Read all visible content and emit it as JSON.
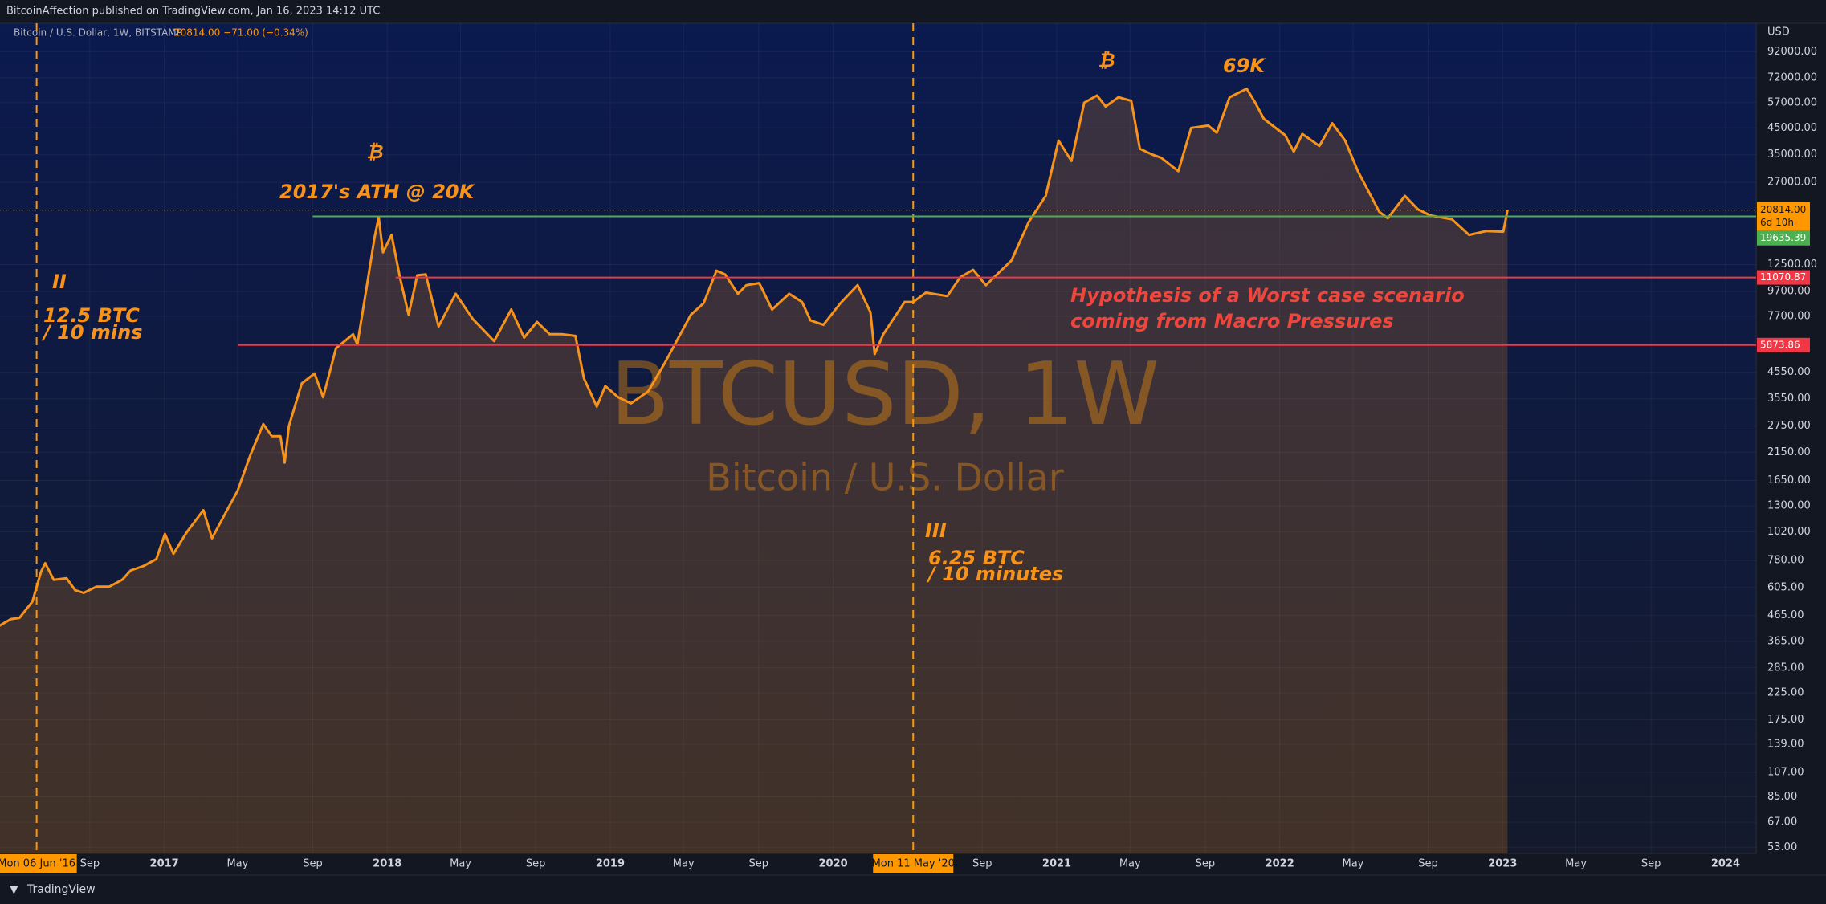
{
  "header": {
    "published": "BitcoinAffection published on TradingView.com, Jan 16, 2023 14:12 UTC",
    "symbol": "Bitcoin / U.S. Dollar, 1W, BITSTAMP",
    "quote": "20814.00  −71.00 (−0.34%)",
    "currency": "USD"
  },
  "footer": {
    "brand": "TradingView"
  },
  "chart_data": {
    "type": "line",
    "log_scale": true,
    "grid": true,
    "color": "#f7931a",
    "xlim": [
      "2016-04-07",
      "2024-02-20"
    ],
    "ylim": [
      50,
      120000
    ],
    "yticks": [
      {
        "value": 53,
        "label": "53.00"
      },
      {
        "value": 67,
        "label": "67.00"
      },
      {
        "value": 85,
        "label": "85.00"
      },
      {
        "value": 107,
        "label": "107.00"
      },
      {
        "value": 139,
        "label": "139.00"
      },
      {
        "value": 175,
        "label": "175.00"
      },
      {
        "value": 225,
        "label": "225.00"
      },
      {
        "value": 285,
        "label": "285.00"
      },
      {
        "value": 365,
        "label": "365.00"
      },
      {
        "value": 465,
        "label": "465.00"
      },
      {
        "value": 605,
        "label": "605.00"
      },
      {
        "value": 780,
        "label": "780.00"
      },
      {
        "value": 1020,
        "label": "1020.00"
      },
      {
        "value": 1300,
        "label": "1300.00"
      },
      {
        "value": 1650,
        "label": "1650.00"
      },
      {
        "value": 2150,
        "label": "2150.00"
      },
      {
        "value": 2750,
        "label": "2750.00"
      },
      {
        "value": 3550,
        "label": "3550.00"
      },
      {
        "value": 4550,
        "label": "4550.00"
      },
      {
        "value": 7700,
        "label": "7700.00"
      },
      {
        "value": 9700,
        "label": "9700.00"
      },
      {
        "value": 12500,
        "label": "12500.00"
      },
      {
        "value": 27000,
        "label": "27000.00"
      },
      {
        "value": 35000,
        "label": "35000.00"
      },
      {
        "value": 45000,
        "label": "45000.00"
      },
      {
        "value": 57000,
        "label": "57000.00"
      },
      {
        "value": 72000,
        "label": "72000.00"
      },
      {
        "value": 92000,
        "label": "92000.00"
      }
    ],
    "xticks": [
      {
        "value": "2016-09-01",
        "label": "Sep"
      },
      {
        "value": "2017-01-01",
        "label": "2017"
      },
      {
        "value": "2017-05-01",
        "label": "May"
      },
      {
        "value": "2017-09-01",
        "label": "Sep"
      },
      {
        "value": "2018-01-01",
        "label": "2018"
      },
      {
        "value": "2018-05-01",
        "label": "May"
      },
      {
        "value": "2018-09-01",
        "label": "Sep"
      },
      {
        "value": "2019-01-01",
        "label": "2019"
      },
      {
        "value": "2019-05-01",
        "label": "May"
      },
      {
        "value": "2019-09-01",
        "label": "Sep"
      },
      {
        "value": "2020-01-01",
        "label": "2020"
      },
      {
        "value": "2020-09-01",
        "label": "Sep"
      },
      {
        "value": "2021-01-01",
        "label": "2021"
      },
      {
        "value": "2021-05-01",
        "label": "May"
      },
      {
        "value": "2021-09-01",
        "label": "Sep"
      },
      {
        "value": "2022-01-01",
        "label": "2022"
      },
      {
        "value": "2022-05-01",
        "label": "May"
      },
      {
        "value": "2022-09-01",
        "label": "Sep"
      },
      {
        "value": "2023-01-01",
        "label": "2023"
      },
      {
        "value": "2023-05-01",
        "label": "May"
      },
      {
        "value": "2023-09-01",
        "label": "Sep"
      },
      {
        "value": "2024-01-01",
        "label": "2024"
      }
    ],
    "halvings": [
      {
        "date": "2016-06-06",
        "label": "Mon 06 Jun '16"
      },
      {
        "date": "2020-05-11",
        "label": "Mon 11 May '20"
      }
    ],
    "hlines": [
      {
        "value": 19635.39,
        "color": "#4caf50",
        "start": "2017-09-01"
      },
      {
        "value": 11070.87,
        "color": "#f23645",
        "start": "2018-01-15"
      },
      {
        "value": 5873.86,
        "color": "#f23645",
        "start": "2017-05-01"
      }
    ],
    "last_price": {
      "value": 20814,
      "label": "20814.00",
      "countdown": "6d 10h",
      "color": "#ff9800"
    },
    "watermark": {
      "symbol": "BTCUSD, 1W",
      "description": "Bitcoin / U.S. Dollar"
    },
    "annotations": [
      "₿",
      "2017's ATH @ 20K",
      "₿",
      "69K",
      "II",
      "12.5 BTC",
      "/ 10 mins",
      "III",
      "6.25 BTC",
      "/ 10 minutes",
      "Hypothesis of a Worst case scenario",
      "coming from Macro Pressures"
    ],
    "x": [
      "2016-04-04",
      "2016-04-25",
      "2016-05-09",
      "2016-05-30",
      "2016-06-13",
      "2016-06-20",
      "2016-07-04",
      "2016-07-25",
      "2016-08-08",
      "2016-08-22",
      "2016-09-12",
      "2016-10-03",
      "2016-10-24",
      "2016-11-07",
      "2016-11-28",
      "2016-12-19",
      "2017-01-02",
      "2017-01-16",
      "2017-02-06",
      "2017-03-06",
      "2017-03-20",
      "2017-04-10",
      "2017-05-01",
      "2017-05-22",
      "2017-06-12",
      "2017-06-26",
      "2017-07-10",
      "2017-07-17",
      "2017-07-24",
      "2017-08-14",
      "2017-09-04",
      "2017-09-18",
      "2017-10-09",
      "2017-11-06",
      "2017-11-13",
      "2017-11-27",
      "2017-12-11",
      "2017-12-18",
      "2017-12-25",
      "2018-01-08",
      "2018-01-22",
      "2018-02-05",
      "2018-02-19",
      "2018-03-05",
      "2018-03-26",
      "2018-04-23",
      "2018-05-21",
      "2018-06-25",
      "2018-07-23",
      "2018-08-13",
      "2018-09-03",
      "2018-09-24",
      "2018-10-15",
      "2018-11-05",
      "2018-11-19",
      "2018-12-10",
      "2018-12-24",
      "2019-01-14",
      "2019-02-04",
      "2019-03-04",
      "2019-04-01",
      "2019-05-13",
      "2019-06-03",
      "2019-06-24",
      "2019-07-08",
      "2019-07-29",
      "2019-08-12",
      "2019-09-02",
      "2019-09-23",
      "2019-10-21",
      "2019-11-11",
      "2019-11-25",
      "2019-12-16",
      "2020-01-13",
      "2020-02-10",
      "2020-03-02",
      "2020-03-09",
      "2020-03-23",
      "2020-04-27",
      "2020-05-11",
      "2020-06-01",
      "2020-07-06",
      "2020-07-27",
      "2020-08-17",
      "2020-09-07",
      "2020-10-19",
      "2020-11-16",
      "2020-12-14",
      "2021-01-04",
      "2021-01-25",
      "2021-02-15",
      "2021-03-08",
      "2021-03-22",
      "2021-04-12",
      "2021-05-03",
      "2021-05-17",
      "2021-06-07",
      "2021-06-21",
      "2021-07-19",
      "2021-08-09",
      "2021-09-06",
      "2021-09-20",
      "2021-10-11",
      "2021-11-08",
      "2021-11-22",
      "2021-12-06",
      "2022-01-10",
      "2022-01-24",
      "2022-02-07",
      "2022-03-07",
      "2022-03-28",
      "2022-04-18",
      "2022-05-09",
      "2022-06-13",
      "2022-06-27",
      "2022-07-25",
      "2022-08-15",
      "2022-09-05",
      "2022-10-10",
      "2022-11-07",
      "2022-12-05",
      "2023-01-02",
      "2023-01-09"
    ],
    "values": [
      420,
      450,
      455,
      530,
      700,
      760,
      650,
      660,
      590,
      575,
      610,
      610,
      650,
      710,
      740,
      790,
      1000,
      830,
      1010,
      1250,
      960,
      1200,
      1500,
      2100,
      2800,
      2500,
      2500,
      1950,
      2750,
      4100,
      4500,
      3600,
      5700,
      6500,
      5900,
      9700,
      16000,
      19500,
      14000,
      16500,
      11000,
      7800,
      11300,
      11400,
      7000,
      9500,
      7500,
      6100,
      8200,
      6300,
      7300,
      6500,
      6500,
      6400,
      4300,
      3300,
      4000,
      3600,
      3400,
      3800,
      5000,
      7800,
      8700,
      11800,
      11400,
      9500,
      10300,
      10500,
      8200,
      9500,
      8800,
      7400,
      7100,
      8700,
      10300,
      8000,
      5400,
      6500,
      8800,
      8800,
      9600,
      9300,
      11100,
      11900,
      10300,
      13000,
      18600,
      23800,
      40000,
      33000,
      57000,
      61000,
      55000,
      60000,
      58000,
      37000,
      35000,
      34000,
      30000,
      45000,
      46000,
      43000,
      60000,
      65000,
      57000,
      49000,
      42000,
      36000,
      42500,
      38000,
      47000,
      40000,
      30000,
      20500,
      19300,
      23800,
      21000,
      19800,
      19100,
      16500,
      17100,
      17000,
      20814
    ]
  }
}
